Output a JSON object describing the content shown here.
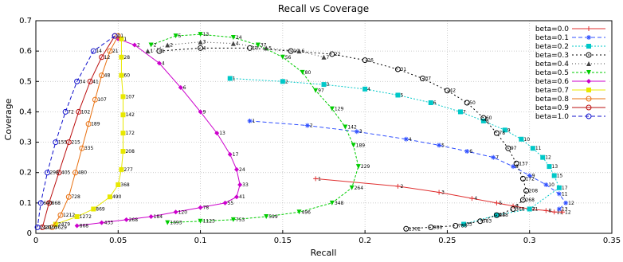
{
  "chart_data": {
    "type": "line",
    "title": "Recall vs Coverage",
    "xlabel": "Recall",
    "ylabel": "Coverage",
    "xlim": [
      0,
      0.35
    ],
    "ylim": [
      0,
      0.7
    ],
    "xticks": [
      "0",
      "0.05",
      "0.1",
      "0.15",
      "0.2",
      "0.25",
      "0.3",
      "0.35"
    ],
    "yticks": [
      "0",
      "0.1",
      "0.2",
      "0.3",
      "0.4",
      "0.5",
      "0.6",
      "0.7"
    ],
    "grid": true,
    "legend_position": "top-right",
    "series": [
      {
        "name": "beta=0.0",
        "color": "#e03030",
        "marker": "plus",
        "dash": "",
        "x": [
          0.17,
          0.22,
          0.245,
          0.265,
          0.28,
          0.29,
          0.3,
          0.31,
          0.315,
          0.32
        ],
        "y": [
          0.18,
          0.155,
          0.135,
          0.115,
          0.1,
          0.09,
          0.08,
          0.075,
          0.07,
          0.07
        ],
        "labels": [
          "1",
          "2",
          "3",
          "4",
          "5",
          "6",
          "7",
          "8",
          "11",
          "12"
        ]
      },
      {
        "name": "beta=0.1",
        "color": "#3050ff",
        "marker": "star",
        "dash": "5,3",
        "x": [
          0.13,
          0.165,
          0.195,
          0.225,
          0.245,
          0.262,
          0.278,
          0.29,
          0.3,
          0.31,
          0.318,
          0.322,
          0.318
        ],
        "y": [
          0.37,
          0.355,
          0.335,
          0.31,
          0.29,
          0.27,
          0.25,
          0.22,
          0.19,
          0.16,
          0.13,
          0.1,
          0.08
        ],
        "labels": [
          "1",
          "2",
          "3",
          "4",
          "5",
          "6",
          "7",
          "8",
          "9",
          "10",
          "11",
          "12",
          "13"
        ]
      },
      {
        "name": "beta=0.2",
        "color": "#00c8c8",
        "marker": "square",
        "dash": "2,2",
        "x": [
          0.118,
          0.15,
          0.175,
          0.2,
          0.22,
          0.24,
          0.258,
          0.272,
          0.285,
          0.295,
          0.302,
          0.308,
          0.312,
          0.315,
          0.318,
          0.3,
          0.28,
          0.26
        ],
        "y": [
          0.51,
          0.5,
          0.49,
          0.475,
          0.455,
          0.43,
          0.4,
          0.37,
          0.34,
          0.31,
          0.28,
          0.25,
          0.22,
          0.19,
          0.15,
          0.08,
          0.06,
          0.03
        ],
        "labels": [
          "1",
          "2",
          "3",
          "4",
          "5",
          "6",
          "7",
          "8",
          "9",
          "10",
          "11",
          "12",
          "13",
          "15",
          "17",
          "21",
          "23",
          "33"
        ]
      },
      {
        "name": "beta=0.3",
        "color": "#000000",
        "marker": "circle",
        "dash": "2,3",
        "x": [
          0.075,
          0.1,
          0.13,
          0.155,
          0.18,
          0.2,
          0.22,
          0.235,
          0.25,
          0.262,
          0.272,
          0.28,
          0.287,
          0.292,
          0.296,
          0.298,
          0.296,
          0.29,
          0.28,
          0.27,
          0.255,
          0.24,
          0.225
        ],
        "y": [
          0.6,
          0.61,
          0.61,
          0.6,
          0.59,
          0.57,
          0.54,
          0.51,
          0.47,
          0.43,
          0.38,
          0.33,
          0.28,
          0.23,
          0.18,
          0.14,
          0.11,
          0.08,
          0.06,
          0.04,
          0.025,
          0.02,
          0.015
        ],
        "labels": [
          "1",
          "4",
          "10",
          "19",
          "22",
          "26",
          "31",
          "37",
          "42",
          "50",
          "60",
          "78",
          "97",
          "137",
          "172",
          "208",
          "268",
          "368",
          "448",
          "583",
          "788",
          "986",
          "1302"
        ]
      },
      {
        "name": "beta=0.4",
        "color": "#444444",
        "marker": "triangle",
        "dash": "1,3",
        "x": [
          0.068,
          0.08,
          0.1,
          0.12,
          0.14,
          0.16,
          0.175
        ],
        "y": [
          0.6,
          0.62,
          0.63,
          0.625,
          0.61,
          0.6,
          0.58
        ],
        "labels": [
          "1",
          "2",
          "3",
          "4",
          "5",
          "6",
          "7"
        ]
      },
      {
        "name": "beta=0.5",
        "color": "#00cc00",
        "marker": "tri-down",
        "dash": "3,2",
        "x": [
          0.07,
          0.085,
          0.1,
          0.12,
          0.135,
          0.15,
          0.162,
          0.17,
          0.18,
          0.188,
          0.193,
          0.196,
          0.192,
          0.18,
          0.16,
          0.14,
          0.12,
          0.1,
          0.08
        ],
        "y": [
          0.62,
          0.65,
          0.655,
          0.645,
          0.62,
          0.58,
          0.53,
          0.47,
          0.41,
          0.35,
          0.29,
          0.22,
          0.15,
          0.1,
          0.07,
          0.055,
          0.045,
          0.04,
          0.035
        ],
        "labels": [
          "2",
          "5",
          "13",
          "24",
          "37",
          "56",
          "80",
          "97",
          "129",
          "142",
          "189",
          "229",
          "264",
          "348",
          "496",
          "599",
          "753",
          "1123",
          "1693"
        ]
      },
      {
        "name": "beta=0.6",
        "color": "#cc00cc",
        "marker": "diamond",
        "dash": "",
        "x": [
          0.05,
          0.06,
          0.075,
          0.088,
          0.1,
          0.11,
          0.118,
          0.122,
          0.124,
          0.122,
          0.115,
          0.1,
          0.085,
          0.07,
          0.055,
          0.04,
          0.025
        ],
        "y": [
          0.64,
          0.62,
          0.56,
          0.48,
          0.4,
          0.33,
          0.26,
          0.21,
          0.16,
          0.12,
          0.1,
          0.085,
          0.07,
          0.055,
          0.045,
          0.035,
          0.025
        ],
        "labels": [
          "1",
          "2",
          "4",
          "6",
          "9",
          "13",
          "17",
          "24",
          "33",
          "41",
          "55",
          "78",
          "120",
          "184",
          "268",
          "433",
          "868"
        ]
      },
      {
        "name": "beta=0.7",
        "color": "#e8e800",
        "marker": "square",
        "dash": "",
        "x": [
          0.052,
          0.052,
          0.052,
          0.053,
          0.053,
          0.053,
          0.053,
          0.052,
          0.05,
          0.045,
          0.035,
          0.025,
          0.012
        ],
        "y": [
          0.64,
          0.58,
          0.52,
          0.45,
          0.39,
          0.33,
          0.27,
          0.21,
          0.16,
          0.12,
          0.08,
          0.055,
          0.03
        ],
        "labels": [
          "1",
          "28",
          "60",
          "107",
          "142",
          "172",
          "208",
          "277",
          "368",
          "490",
          "869",
          "1272",
          "2479"
        ]
      },
      {
        "name": "beta=0.8",
        "color": "#e87010",
        "marker": "circle",
        "dash": "",
        "x": [
          0.05,
          0.045,
          0.04,
          0.036,
          0.032,
          0.028,
          0.024,
          0.02,
          0.015,
          0.01
        ],
        "y": [
          0.65,
          0.6,
          0.52,
          0.44,
          0.36,
          0.28,
          0.2,
          0.12,
          0.06,
          0.02
        ],
        "labels": [
          "1",
          "21",
          "48",
          "107",
          "189",
          "335",
          "480",
          "728",
          "1212",
          "3629"
        ]
      },
      {
        "name": "beta=0.9",
        "color": "#bb1010",
        "marker": "circle",
        "dash": "",
        "x": [
          0.048,
          0.04,
          0.033,
          0.026,
          0.02,
          0.014,
          0.008,
          0.004
        ],
        "y": [
          0.65,
          0.58,
          0.5,
          0.4,
          0.3,
          0.2,
          0.1,
          0.02
        ],
        "labels": [
          "1",
          "12",
          "41",
          "102",
          "215",
          "405",
          "868",
          "2046"
        ]
      },
      {
        "name": "beta=1.0",
        "color": "#1010cc",
        "marker": "circle",
        "dash": "5,3",
        "x": [
          0.048,
          0.035,
          0.025,
          0.018,
          0.012,
          0.007,
          0.003,
          0.001
        ],
        "y": [
          0.65,
          0.6,
          0.5,
          0.4,
          0.3,
          0.2,
          0.1,
          0.02
        ],
        "labels": [
          "1",
          "14",
          "34",
          "72",
          "155",
          "298",
          "640",
          "1441"
        ]
      }
    ]
  }
}
